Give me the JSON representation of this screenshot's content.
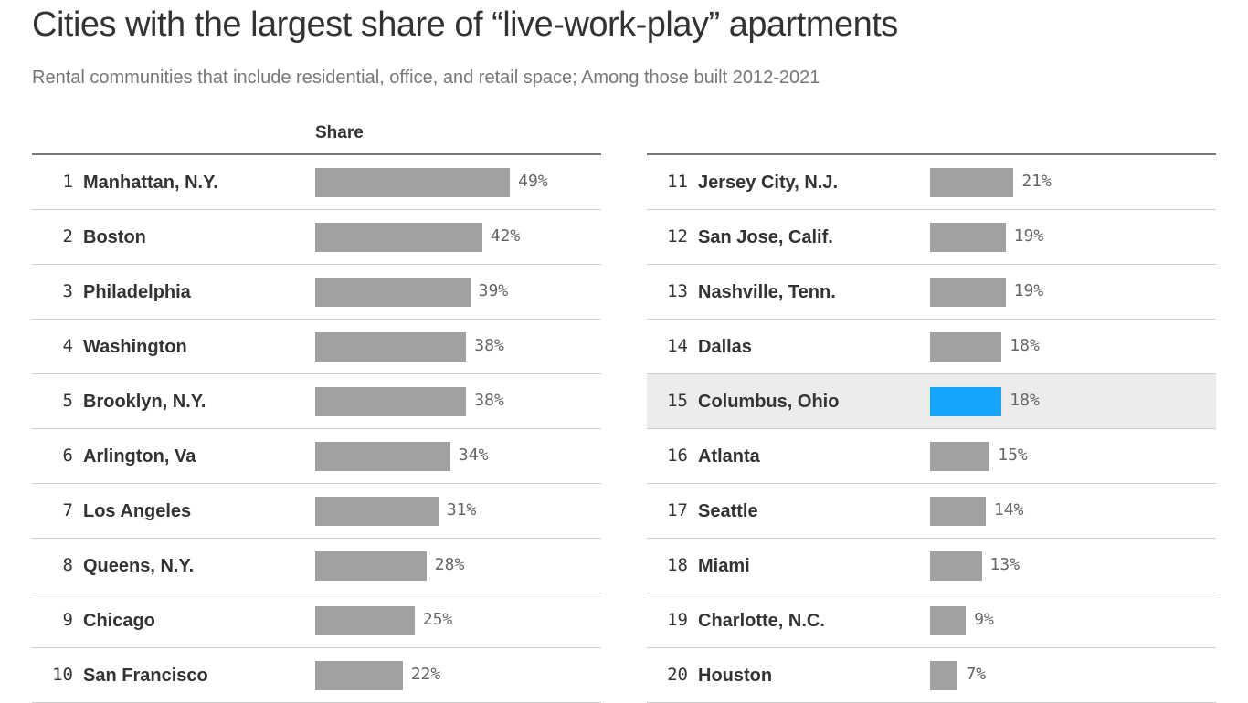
{
  "chart_data": {
    "type": "bar",
    "title": "Cities with the largest share of “live-work-play” apartments",
    "subtitle": "Rental communities that include residential, office, and retail space; Among those built 2012-2021",
    "column_header": "Share",
    "highlight_color": "#15a3fc",
    "bar_color": "#a0a1a0",
    "highlighted": "Columbus, Ohio",
    "rows": [
      {
        "rank": "1",
        "name": "Manhattan, N.Y.",
        "value": 49,
        "label": "49%"
      },
      {
        "rank": "2",
        "name": "Boston",
        "value": 42,
        "label": "42%"
      },
      {
        "rank": "3",
        "name": "Philadelphia",
        "value": 39,
        "label": "39%"
      },
      {
        "rank": "4",
        "name": "Washington",
        "value": 38,
        "label": "38%"
      },
      {
        "rank": "5",
        "name": "Brooklyn, N.Y.",
        "value": 38,
        "label": "38%"
      },
      {
        "rank": "6",
        "name": "Arlington, Va",
        "value": 34,
        "label": "34%"
      },
      {
        "rank": "7",
        "name": "Los Angeles",
        "value": 31,
        "label": "31%"
      },
      {
        "rank": "8",
        "name": "Queens, N.Y.",
        "value": 28,
        "label": "28%"
      },
      {
        "rank": "9",
        "name": "Chicago",
        "value": 25,
        "label": "25%"
      },
      {
        "rank": "10",
        "name": "San Francisco",
        "value": 22,
        "label": "22%"
      },
      {
        "rank": "11",
        "name": "Jersey City, N.J.",
        "value": 21,
        "label": "21%"
      },
      {
        "rank": "12",
        "name": "San Jose, Calif.",
        "value": 19,
        "label": "19%"
      },
      {
        "rank": "13",
        "name": "Nashville, Tenn.",
        "value": 19,
        "label": "19%"
      },
      {
        "rank": "14",
        "name": "Dallas",
        "value": 18,
        "label": "18%"
      },
      {
        "rank": "15",
        "name": "Columbus, Ohio",
        "value": 18,
        "label": "18%"
      },
      {
        "rank": "16",
        "name": "Atlanta",
        "value": 15,
        "label": "15%"
      },
      {
        "rank": "17",
        "name": "Seattle",
        "value": 14,
        "label": "14%"
      },
      {
        "rank": "18",
        "name": "Miami",
        "value": 13,
        "label": "13%"
      },
      {
        "rank": "19",
        "name": "Charlotte, N.C.",
        "value": 9,
        "label": "9%"
      },
      {
        "rank": "20",
        "name": "Houston",
        "value": 7,
        "label": "7%"
      }
    ]
  }
}
